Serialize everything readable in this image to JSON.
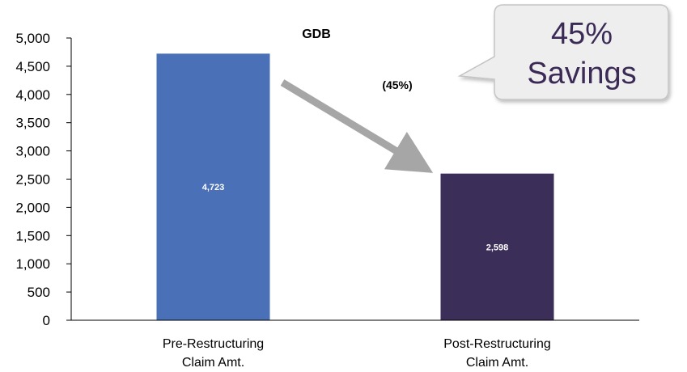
{
  "chart_data": {
    "type": "bar",
    "title": "GDB",
    "categories": [
      [
        "Pre-Restructuring",
        "Claim Amt."
      ],
      [
        "Post-Restructuring",
        "Claim Amt."
      ]
    ],
    "values": [
      4723,
      2598
    ],
    "value_labels": [
      "4,723",
      "2,598"
    ],
    "bar_colors": [
      "#4a70b8",
      "#3b2e58"
    ],
    "ylim": [
      0,
      5000
    ],
    "y_ticks": [
      0,
      500,
      1000,
      1500,
      2000,
      2500,
      3000,
      3500,
      4000,
      4500,
      5000
    ],
    "y_tick_labels": [
      "0",
      "500",
      "1,000",
      "1,500",
      "2,000",
      "2,500",
      "3,000",
      "3,500",
      "4,000",
      "4,500",
      "5,000"
    ],
    "grid": false,
    "legend": "none",
    "change_annotation": "(45%)",
    "callout": [
      "45%",
      "Savings"
    ],
    "arrow_color": "#a6a6a6"
  }
}
